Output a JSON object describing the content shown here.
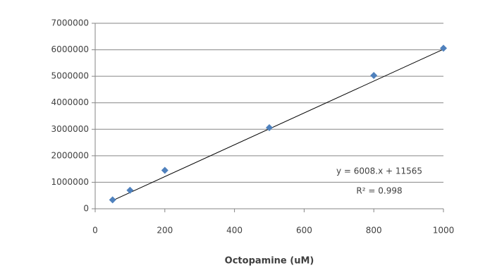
{
  "chart_data": {
    "type": "scatter",
    "x_label": "Octopamine (uM)",
    "series": [
      {
        "name": null,
        "color": "#4f81bd",
        "x": [
          50,
          100,
          200,
          500,
          800,
          1000
        ],
        "values": [
          335000,
          700000,
          1450000,
          3060000,
          5030000,
          6060000
        ]
      }
    ],
    "trendline": {
      "slope": 6008,
      "intercept": 11565,
      "equation": "y = 6008.x + 11565",
      "r2_label": "R² = 0.998",
      "color": "#000000"
    },
    "xlim": [
      0,
      1000
    ],
    "xticks": [
      0,
      200,
      400,
      600,
      800,
      1000
    ],
    "ylim": [
      0,
      7000000
    ],
    "yticks": [
      0,
      1000000,
      2000000,
      3000000,
      4000000,
      5000000,
      6000000,
      7000000
    ],
    "grid": true
  }
}
